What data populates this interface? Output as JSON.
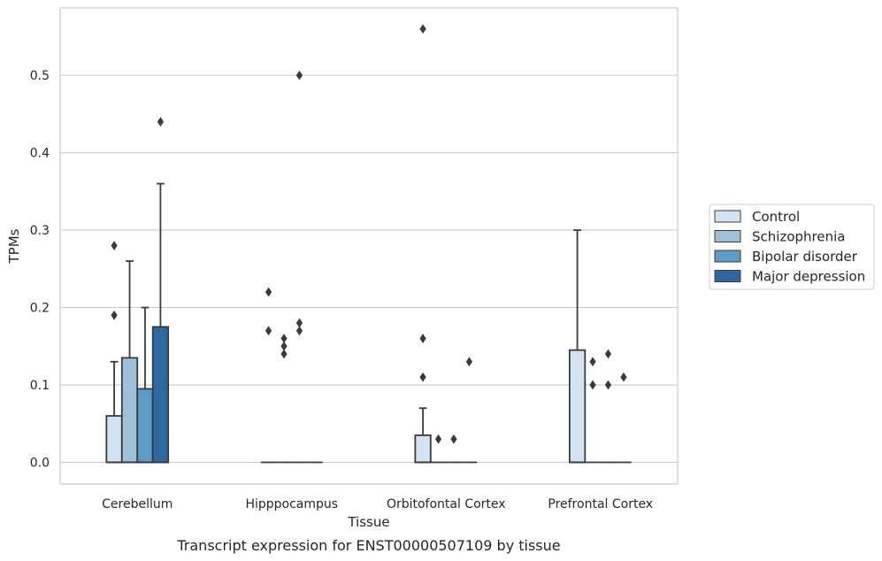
{
  "chart_data": {
    "type": "box",
    "xlabel": "Tissue",
    "ylabel": "TPMs",
    "caption": "Transcript expression for ENST00000507109 by tissue",
    "ylim": [
      -0.028,
      0.587
    ],
    "yticks": [
      0.0,
      0.1,
      0.2,
      0.3,
      0.4,
      0.5
    ],
    "ytick_labels": [
      "0.0",
      "0.1",
      "0.2",
      "0.3",
      "0.4",
      "0.5"
    ],
    "grid": true,
    "legend_position": "right",
    "categories": [
      "Cerebellum",
      "Hipppocampus",
      "Orbitofontal Cortex",
      "Prefrontal Cortex"
    ],
    "series": [
      {
        "name": "Control",
        "color": "#d4e3f2",
        "boxes": [
          {
            "q1": 0.0,
            "median": 0.0,
            "q3": 0.06,
            "whisker_low": 0.0,
            "whisker_high": 0.13,
            "outliers": [
              0.19,
              0.28
            ]
          },
          {
            "q1": 0.0,
            "median": 0.0,
            "q3": 0.0,
            "whisker_low": 0.0,
            "whisker_high": 0.0,
            "outliers": [
              0.17,
              0.22
            ]
          },
          {
            "q1": 0.0,
            "median": 0.0,
            "q3": 0.035,
            "whisker_low": 0.0,
            "whisker_high": 0.07,
            "outliers": [
              0.11,
              0.16,
              0.56
            ]
          },
          {
            "q1": 0.0,
            "median": 0.0,
            "q3": 0.145,
            "whisker_low": 0.0,
            "whisker_high": 0.3,
            "outliers": []
          }
        ]
      },
      {
        "name": "Schizophrenia",
        "color": "#9fc1d8",
        "boxes": [
          {
            "q1": 0.0,
            "median": 0.0,
            "q3": 0.135,
            "whisker_low": 0.0,
            "whisker_high": 0.26,
            "outliers": []
          },
          {
            "q1": 0.0,
            "median": 0.0,
            "q3": 0.0,
            "whisker_low": 0.0,
            "whisker_high": 0.0,
            "outliers": [
              0.14,
              0.15,
              0.16
            ]
          },
          {
            "q1": 0.0,
            "median": 0.0,
            "q3": 0.0,
            "whisker_low": 0.0,
            "whisker_high": 0.0,
            "outliers": [
              0.03
            ]
          },
          {
            "q1": 0.0,
            "median": 0.0,
            "q3": 0.0,
            "whisker_low": 0.0,
            "whisker_high": 0.0,
            "outliers": [
              0.1,
              0.13
            ]
          }
        ]
      },
      {
        "name": "Bipolar disorder",
        "color": "#5c9cc7",
        "boxes": [
          {
            "q1": 0.0,
            "median": 0.0,
            "q3": 0.095,
            "whisker_low": 0.0,
            "whisker_high": 0.2,
            "outliers": []
          },
          {
            "q1": 0.0,
            "median": 0.0,
            "q3": 0.0,
            "whisker_low": 0.0,
            "whisker_high": 0.0,
            "outliers": [
              0.17,
              0.18,
              0.5
            ]
          },
          {
            "q1": 0.0,
            "median": 0.0,
            "q3": 0.0,
            "whisker_low": 0.0,
            "whisker_high": 0.0,
            "outliers": [
              0.03
            ]
          },
          {
            "q1": 0.0,
            "median": 0.0,
            "q3": 0.0,
            "whisker_low": 0.0,
            "whisker_high": 0.0,
            "outliers": [
              0.1,
              0.14
            ]
          }
        ]
      },
      {
        "name": "Major depression",
        "color": "#2d68a3",
        "boxes": [
          {
            "q1": 0.0,
            "median": 0.0,
            "q3": 0.175,
            "whisker_low": 0.0,
            "whisker_high": 0.36,
            "outliers": [
              0.44
            ]
          },
          {
            "q1": 0.0,
            "median": 0.0,
            "q3": 0.0,
            "whisker_low": 0.0,
            "whisker_high": 0.0,
            "outliers": []
          },
          {
            "q1": 0.0,
            "median": 0.0,
            "q3": 0.0,
            "whisker_low": 0.0,
            "whisker_high": 0.0,
            "outliers": [
              0.13
            ]
          },
          {
            "q1": 0.0,
            "median": 0.0,
            "q3": 0.0,
            "whisker_low": 0.0,
            "whisker_high": 0.0,
            "outliers": [
              0.11
            ]
          }
        ]
      }
    ]
  }
}
